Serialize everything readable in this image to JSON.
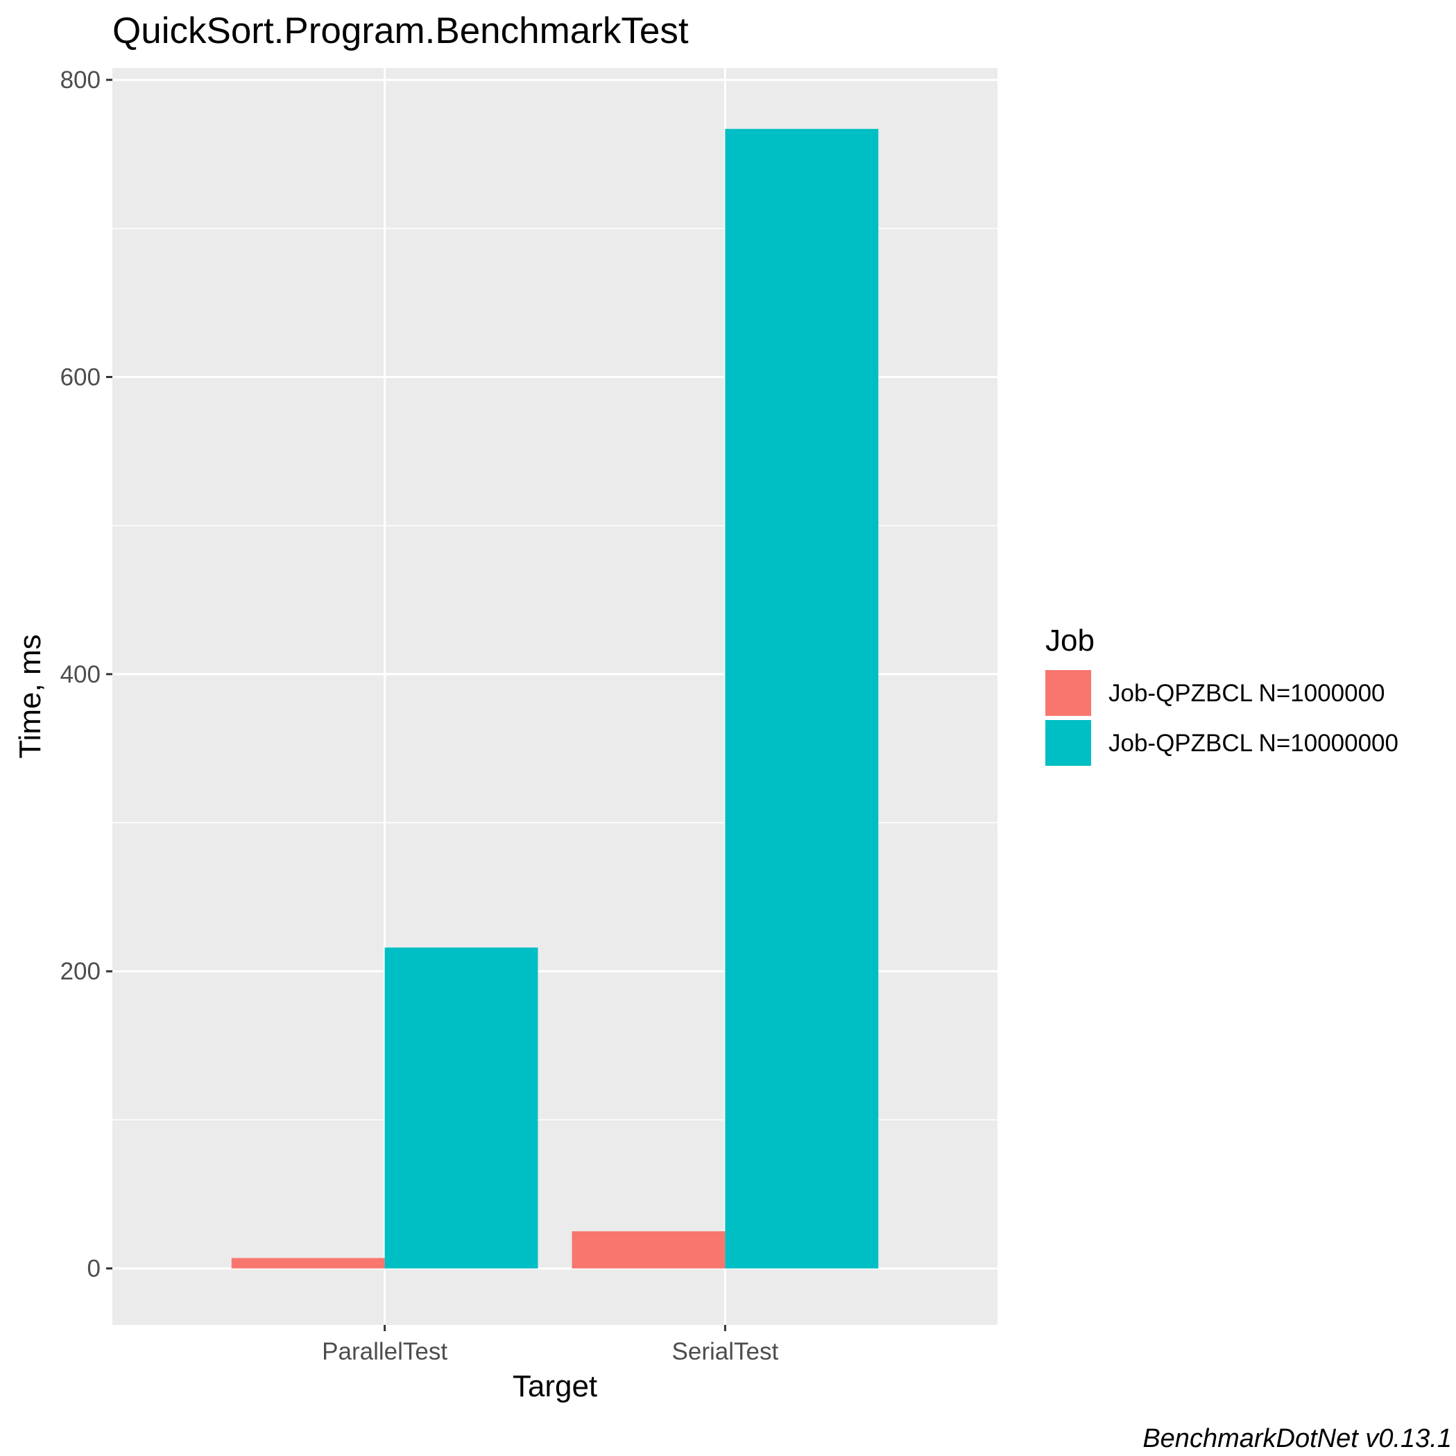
{
  "chart_data": {
    "type": "bar",
    "title": "QuickSort.Program.BenchmarkTest",
    "xlabel": "Target",
    "ylabel": "Time, ms",
    "categories": [
      "ParallelTest",
      "SerialTest"
    ],
    "series": [
      {
        "name": "Job-QPZBCL N=1000000",
        "values": [
          7,
          25
        ],
        "color": "#F8766D"
      },
      {
        "name": "Job-QPZBCL N=10000000",
        "values": [
          216,
          767
        ],
        "color": "#00BFC4"
      }
    ],
    "ylim": [
      -38,
      808
    ],
    "yticks": [
      0,
      200,
      400,
      600,
      800
    ],
    "yticks_minor": [
      100,
      300,
      500,
      700
    ],
    "grid": true,
    "legend": {
      "title": "Job",
      "position": "right"
    },
    "caption": "BenchmarkDotNet v0.13.1",
    "colors": {
      "panel": "#EBEBEB",
      "grid": "#FFFFFF",
      "tick_text": "#4D4D4D",
      "tick_mark": "#333333"
    }
  }
}
